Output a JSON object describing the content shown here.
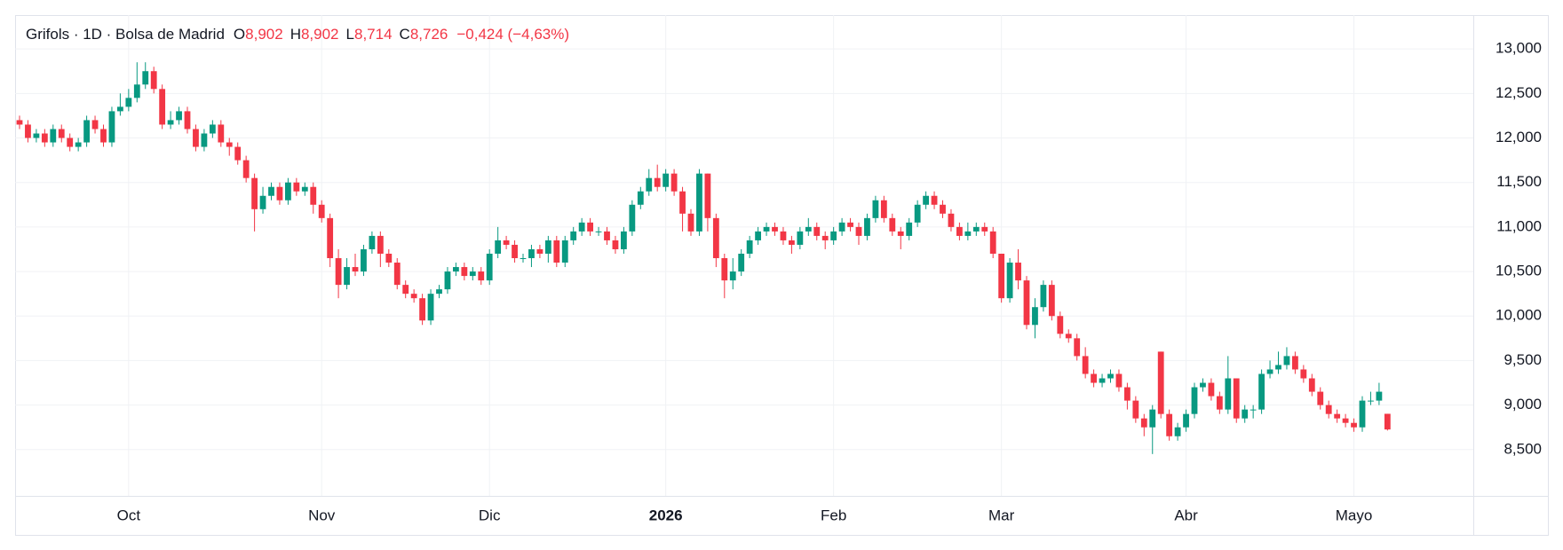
{
  "chart_data": {
    "type": "candlestick",
    "title": "Grifols · 1D · Bolsa de Madrid",
    "ohlc_legend": [
      {
        "label": "O",
        "value": "8,902"
      },
      {
        "label": "H",
        "value": "8,902"
      },
      {
        "label": "L",
        "value": "8,714"
      },
      {
        "label": "C",
        "value": "8,726"
      }
    ],
    "change": "−0,424 (−4,63%)",
    "up_color": "#089981",
    "down_color": "#f23645",
    "ylim": [
      7.98,
      13.38
    ],
    "yticks": [
      {
        "value": 8.5,
        "label": "8,500"
      },
      {
        "value": 9,
        "label": "9,000"
      },
      {
        "value": 9.5,
        "label": "9,500"
      },
      {
        "value": 10,
        "label": "10,000"
      },
      {
        "value": 10.5,
        "label": "10,500"
      },
      {
        "value": 11,
        "label": "11,000"
      },
      {
        "value": 11.5,
        "label": "11,500"
      },
      {
        "value": 12,
        "label": "12,000"
      },
      {
        "value": 12.5,
        "label": "12,500"
      },
      {
        "value": 13,
        "label": "13,000"
      }
    ],
    "xticks": [
      {
        "value": 13,
        "label": "Oct"
      },
      {
        "value": 36,
        "label": "Nov"
      },
      {
        "value": 56,
        "label": "Dic"
      },
      {
        "value": 77,
        "label": "2026"
      },
      {
        "value": 97,
        "label": "Feb"
      },
      {
        "value": 117,
        "label": "Mar"
      },
      {
        "value": 139,
        "label": "Abr"
      },
      {
        "value": 159,
        "label": "Mayo"
      }
    ],
    "grid": true,
    "open": [
      12.2,
      12.15,
      12.0,
      12.05,
      11.95,
      12.1,
      12.0,
      11.9,
      11.95,
      12.2,
      12.1,
      11.95,
      12.3,
      12.35,
      12.45,
      12.6,
      12.75,
      12.55,
      12.15,
      12.2,
      12.3,
      12.1,
      11.9,
      12.05,
      12.15,
      11.95,
      11.9,
      11.75,
      11.55,
      11.2,
      11.35,
      11.45,
      11.3,
      11.5,
      11.4,
      11.45,
      11.25,
      11.1,
      10.65,
      10.35,
      10.55,
      10.5,
      10.75,
      10.9,
      10.7,
      10.6,
      10.35,
      10.25,
      10.2,
      9.95,
      10.25,
      10.3,
      10.5,
      10.55,
      10.45,
      10.5,
      10.4,
      10.7,
      10.85,
      10.8,
      10.65,
      10.65,
      10.75,
      10.7,
      10.85,
      10.6,
      10.85,
      10.95,
      11.05,
      10.95,
      10.95,
      10.85,
      10.75,
      10.95,
      11.25,
      11.4,
      11.55,
      11.45,
      11.6,
      11.4,
      11.15,
      10.95,
      11.6,
      11.1,
      10.65,
      10.4,
      10.5,
      10.7,
      10.85,
      10.95,
      11.0,
      10.95,
      10.85,
      10.8,
      10.95,
      11.0,
      10.9,
      10.85,
      10.95,
      11.05,
      11.0,
      10.9,
      11.1,
      11.3,
      11.1,
      10.95,
      10.9,
      11.05,
      11.25,
      11.35,
      11.25,
      11.15,
      11.0,
      10.9,
      10.95,
      11.0,
      10.95,
      10.7,
      10.2,
      10.6,
      10.4,
      9.9,
      10.1,
      10.35,
      10.0,
      9.8,
      9.75,
      9.55,
      9.35,
      9.25,
      9.3,
      9.35,
      9.2,
      9.05,
      8.85,
      8.75,
      9.6,
      8.9,
      8.65,
      8.75,
      8.9,
      9.2,
      9.25,
      9.1,
      8.95,
      9.3,
      8.85,
      8.95,
      8.95,
      9.35,
      9.4,
      9.45,
      9.55,
      9.4,
      9.3,
      9.15,
      9.0,
      8.9,
      8.85,
      8.8,
      8.75,
      9.05,
      9.05,
      8.902
    ],
    "high": [
      12.25,
      12.2,
      12.1,
      12.1,
      12.15,
      12.15,
      12.05,
      12.0,
      12.25,
      12.25,
      12.15,
      12.35,
      12.5,
      12.55,
      12.85,
      12.85,
      12.8,
      12.6,
      12.3,
      12.35,
      12.35,
      12.15,
      12.1,
      12.2,
      12.2,
      12.0,
      11.95,
      11.8,
      11.6,
      11.45,
      11.5,
      11.5,
      11.55,
      11.55,
      11.5,
      11.5,
      11.3,
      11.15,
      10.75,
      10.65,
      10.7,
      10.8,
      10.95,
      10.95,
      10.75,
      10.65,
      10.4,
      10.3,
      10.25,
      10.3,
      10.35,
      10.55,
      10.6,
      10.6,
      10.55,
      10.55,
      10.75,
      11.0,
      10.9,
      10.85,
      10.7,
      10.8,
      10.8,
      10.9,
      10.9,
      10.9,
      11.0,
      11.1,
      11.1,
      11.0,
      11.0,
      10.9,
      11.0,
      11.3,
      11.45,
      11.65,
      11.7,
      11.65,
      11.65,
      11.45,
      11.2,
      11.65,
      11.6,
      11.15,
      10.7,
      10.65,
      10.75,
      10.9,
      11.0,
      11.05,
      11.05,
      11.0,
      10.9,
      11.0,
      11.1,
      11.05,
      10.95,
      11.0,
      11.1,
      11.1,
      11.05,
      11.15,
      11.35,
      11.35,
      11.15,
      11.0,
      11.1,
      11.3,
      11.4,
      11.4,
      11.3,
      11.2,
      11.05,
      11.05,
      11.05,
      11.05,
      11.0,
      10.7,
      10.65,
      10.75,
      10.45,
      10.2,
      10.4,
      10.4,
      10.05,
      9.85,
      9.8,
      9.65,
      9.4,
      9.35,
      9.4,
      9.4,
      9.25,
      9.1,
      8.9,
      9.0,
      9.6,
      8.95,
      8.8,
      8.95,
      9.25,
      9.3,
      9.3,
      9.15,
      9.55,
      9.3,
      9.0,
      9.0,
      9.4,
      9.5,
      9.6,
      9.65,
      9.6,
      9.45,
      9.35,
      9.2,
      9.05,
      8.95,
      8.9,
      8.85,
      9.1,
      9.15,
      9.25,
      8.902
    ],
    "low": [
      12.1,
      11.95,
      11.95,
      11.9,
      11.9,
      11.95,
      11.85,
      11.85,
      11.9,
      12.05,
      11.9,
      11.9,
      12.25,
      12.3,
      12.4,
      12.55,
      12.5,
      12.1,
      12.1,
      12.15,
      12.05,
      11.85,
      11.85,
      12.0,
      11.9,
      11.8,
      11.7,
      11.5,
      10.95,
      11.15,
      11.3,
      11.25,
      11.25,
      11.35,
      11.35,
      11.15,
      11.05,
      10.55,
      10.2,
      10.3,
      10.45,
      10.45,
      10.7,
      10.55,
      10.55,
      10.3,
      10.2,
      10.15,
      9.9,
      9.9,
      10.2,
      10.25,
      10.45,
      10.4,
      10.4,
      10.35,
      10.35,
      10.65,
      10.75,
      10.6,
      10.6,
      10.55,
      10.65,
      10.6,
      10.55,
      10.55,
      10.8,
      10.9,
      10.9,
      10.9,
      10.8,
      10.7,
      10.7,
      10.9,
      11.2,
      11.35,
      11.4,
      11.4,
      11.35,
      10.95,
      10.9,
      10.9,
      10.95,
      10.55,
      10.2,
      10.3,
      10.45,
      10.65,
      10.8,
      10.9,
      10.9,
      10.8,
      10.7,
      10.75,
      10.9,
      10.85,
      10.75,
      10.8,
      10.9,
      10.95,
      10.8,
      10.85,
      11.05,
      11.05,
      10.9,
      10.75,
      10.85,
      11.0,
      11.2,
      11.2,
      11.1,
      10.95,
      10.85,
      10.85,
      10.9,
      10.9,
      10.65,
      10.15,
      10.15,
      10.3,
      9.85,
      9.75,
      10.05,
      9.95,
      9.75,
      9.7,
      9.5,
      9.3,
      9.2,
      9.2,
      9.25,
      9.15,
      8.95,
      8.8,
      8.65,
      8.45,
      8.85,
      8.6,
      8.6,
      8.7,
      8.85,
      9.15,
      9.05,
      8.9,
      8.9,
      8.8,
      8.8,
      8.85,
      8.9,
      9.3,
      9.35,
      9.4,
      9.35,
      9.25,
      9.1,
      8.95,
      8.85,
      8.8,
      8.75,
      8.7,
      8.7,
      9.0,
      9.0,
      8.714
    ],
    "close": [
      12.15,
      12.0,
      12.05,
      11.95,
      12.1,
      12.0,
      11.9,
      11.95,
      12.2,
      12.1,
      11.95,
      12.3,
      12.35,
      12.45,
      12.6,
      12.75,
      12.55,
      12.15,
      12.2,
      12.3,
      12.1,
      11.9,
      12.05,
      12.15,
      11.95,
      11.9,
      11.75,
      11.55,
      11.2,
      11.35,
      11.45,
      11.3,
      11.5,
      11.4,
      11.45,
      11.25,
      11.1,
      10.65,
      10.35,
      10.55,
      10.5,
      10.75,
      10.9,
      10.7,
      10.6,
      10.35,
      10.25,
      10.2,
      9.95,
      10.25,
      10.3,
      10.5,
      10.55,
      10.45,
      10.5,
      10.4,
      10.7,
      10.85,
      10.8,
      10.65,
      10.65,
      10.75,
      10.7,
      10.85,
      10.6,
      10.85,
      10.95,
      11.05,
      10.95,
      10.95,
      10.85,
      10.75,
      10.95,
      11.25,
      11.4,
      11.55,
      11.45,
      11.6,
      11.4,
      11.15,
      10.95,
      11.6,
      11.1,
      10.65,
      10.4,
      10.5,
      10.7,
      10.85,
      10.95,
      11.0,
      10.95,
      10.85,
      10.8,
      10.95,
      11.0,
      10.9,
      10.85,
      10.95,
      11.05,
      11.0,
      10.9,
      11.1,
      11.3,
      11.1,
      10.95,
      10.9,
      11.05,
      11.25,
      11.35,
      11.25,
      11.15,
      11.0,
      10.9,
      10.95,
      11.0,
      10.95,
      10.7,
      10.2,
      10.6,
      10.4,
      9.9,
      10.1,
      10.35,
      10.0,
      9.8,
      9.75,
      9.55,
      9.35,
      9.25,
      9.3,
      9.35,
      9.2,
      9.05,
      8.85,
      8.75,
      8.95,
      8.9,
      8.65,
      8.75,
      8.9,
      9.2,
      9.25,
      9.1,
      8.95,
      9.3,
      8.85,
      8.95,
      8.95,
      9.35,
      9.4,
      9.45,
      9.55,
      9.4,
      9.3,
      9.15,
      9.0,
      8.9,
      8.85,
      8.8,
      8.75,
      9.05,
      9.05,
      9.15,
      8.726
    ]
  }
}
